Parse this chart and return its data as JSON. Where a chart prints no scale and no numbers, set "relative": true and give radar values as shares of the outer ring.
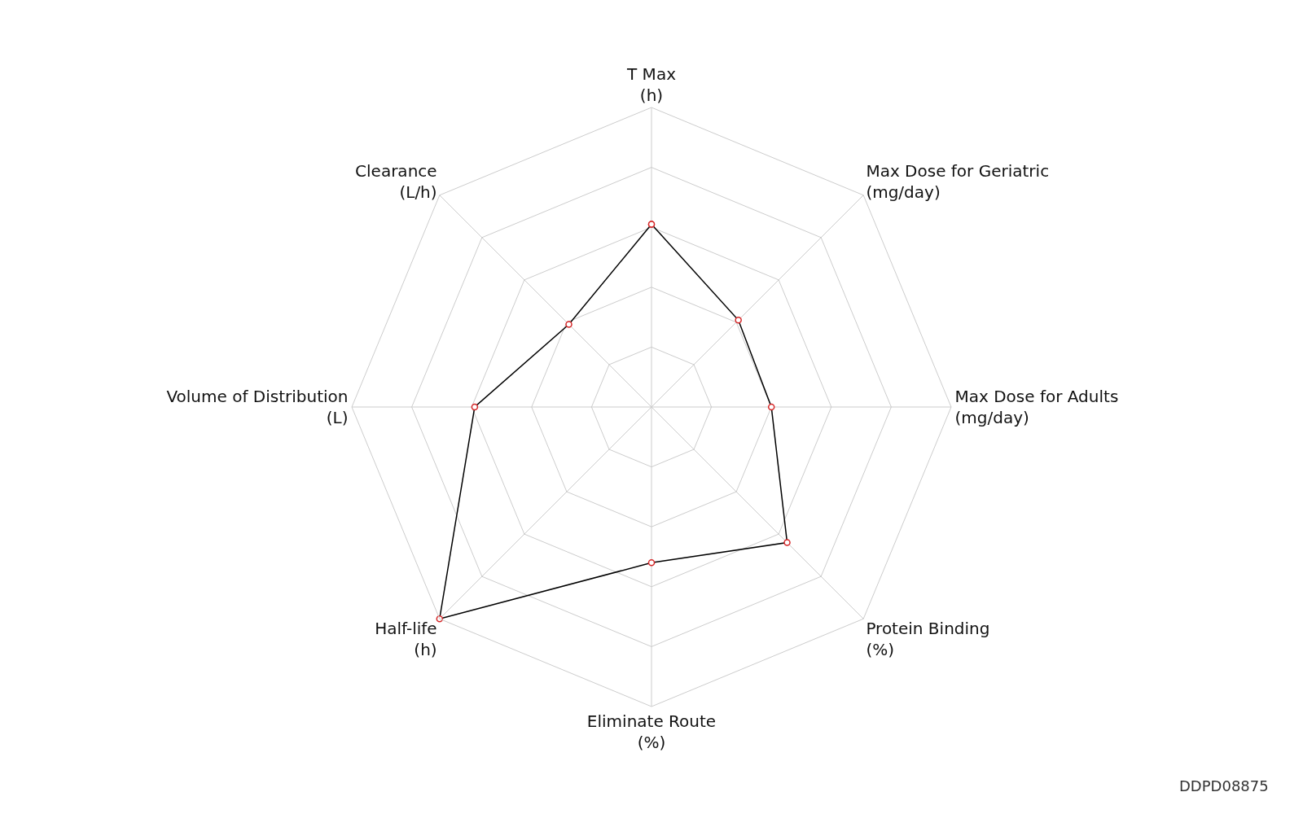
{
  "chart_data": {
    "type": "radar",
    "relative": true,
    "categories": [
      "T Max\n(h)",
      "Max Dose for Geriatric\n(mg/day)",
      "Max Dose for Adults\n(mg/day)",
      "Protein Binding\n(%)",
      "Eliminate Route\n(%)",
      "Half-life\n(h)",
      "Volume of Distribution\n(L)",
      "Clearance\n(L/h)"
    ],
    "series": [
      {
        "color": "#000000",
        "values": [
          0.61,
          0.41,
          0.4,
          0.64,
          0.52,
          1.0,
          0.59,
          0.39
        ]
      }
    ],
    "marker": "circle",
    "annotations": [
      "DDPD08875"
    ]
  }
}
